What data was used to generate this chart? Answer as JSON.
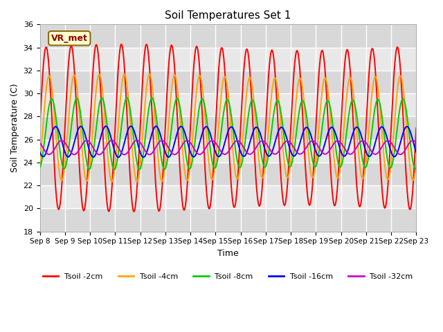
{
  "title": "Soil Temperatures Set 1",
  "xlabel": "Time",
  "ylabel": "Soil Temperature (C)",
  "xlim": [
    0,
    15
  ],
  "ylim": [
    18,
    36
  ],
  "yticks": [
    18,
    20,
    22,
    24,
    26,
    28,
    30,
    32,
    34,
    36
  ],
  "xtick_labels": [
    "Sep 8",
    "Sep 9",
    "Sep 10",
    "Sep 11",
    "Sep 12",
    "Sep 13",
    "Sep 14",
    "Sep 15",
    "Sep 16",
    "Sep 17",
    "Sep 18",
    "Sep 19",
    "Sep 20",
    "Sep 21",
    "Sep 22",
    "Sep 23"
  ],
  "bg_color": "#d8d8d8",
  "fig_color": "#ffffff",
  "label_box": "VR_met",
  "series": [
    {
      "label": "Tsoil -2cm",
      "color": "#ff0000",
      "amplitude": 7.0,
      "mean": 27.0,
      "phase": 0.0
    },
    {
      "label": "Tsoil -4cm",
      "color": "#ffa500",
      "amplitude": 4.5,
      "mean": 27.0,
      "phase": 0.12
    },
    {
      "label": "Tsoil -8cm",
      "color": "#00cc00",
      "amplitude": 3.0,
      "mean": 26.5,
      "phase": 0.22
    },
    {
      "label": "Tsoil -16cm",
      "color": "#0000ff",
      "amplitude": 1.3,
      "mean": 25.8,
      "phase": 0.38
    },
    {
      "label": "Tsoil -32cm",
      "color": "#cc00cc",
      "amplitude": 0.6,
      "mean": 25.3,
      "phase": 0.62
    }
  ],
  "grid_color": "#ffffff",
  "grid_linewidth": 1.0,
  "line_linewidth": 1.4,
  "n_points": 2000,
  "stripe_colors": [
    "#d8d8d8",
    "#e8e8e8"
  ]
}
